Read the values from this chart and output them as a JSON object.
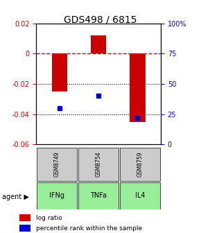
{
  "title": "GDS498 / 6815",
  "categories": [
    "IFNg",
    "TNFa",
    "IL4"
  ],
  "gsm_labels": [
    "GSM8749",
    "GSM8754",
    "GSM8759"
  ],
  "log_ratios": [
    -0.025,
    0.012,
    -0.045
  ],
  "percentile_ranks": [
    30,
    40,
    22
  ],
  "ylim_left": [
    -0.06,
    0.02
  ],
  "ylim_right": [
    0,
    100
  ],
  "left_ticks": [
    0.02,
    0,
    -0.02,
    -0.04,
    -0.06
  ],
  "right_ticks": [
    100,
    75,
    50,
    25,
    0
  ],
  "bar_color": "#cc0000",
  "dot_color": "#0000cc",
  "gsm_color": "#cccccc",
  "agent_color": "#99ee99",
  "legend_bar_label": "log ratio",
  "legend_dot_label": "percentile rank within the sample",
  "zero_line_color": "#cc0000",
  "grid_color": "#000000"
}
